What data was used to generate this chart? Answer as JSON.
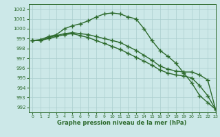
{
  "hours": [
    0,
    1,
    2,
    3,
    4,
    5,
    6,
    7,
    8,
    9,
    10,
    11,
    12,
    13,
    14,
    15,
    16,
    17,
    18,
    19,
    20,
    21,
    22,
    23
  ],
  "line1": [
    998.8,
    998.9,
    999.2,
    999.4,
    1000.0,
    1000.3,
    1000.5,
    1000.8,
    1001.2,
    1001.5,
    1001.6,
    1001.5,
    1001.2,
    1001.0,
    1000.0,
    998.8,
    997.8,
    997.2,
    996.5,
    995.5,
    994.5,
    993.2,
    992.5,
    991.8
  ],
  "line2": [
    998.8,
    998.8,
    999.1,
    999.3,
    999.5,
    999.6,
    999.5,
    999.4,
    999.2,
    999.0,
    998.8,
    998.6,
    998.2,
    997.8,
    997.3,
    996.8,
    996.2,
    995.9,
    995.7,
    995.6,
    995.6,
    995.3,
    994.8,
    991.8
  ],
  "line3": [
    998.8,
    998.8,
    999.0,
    999.2,
    999.4,
    999.5,
    999.3,
    999.1,
    998.8,
    998.5,
    998.2,
    997.9,
    997.5,
    997.1,
    996.7,
    996.3,
    995.8,
    995.5,
    995.3,
    995.2,
    995.0,
    994.2,
    993.2,
    991.8
  ],
  "line_color": "#2d6a2d",
  "bg_color": "#cce8e8",
  "grid_color": "#aacece",
  "xlabel": "Graphe pression niveau de la mer (hPa)",
  "ylim": [
    991.5,
    1002.5
  ],
  "xlim": [
    -0.5,
    23
  ],
  "yticks": [
    992,
    993,
    994,
    995,
    996,
    997,
    998,
    999,
    1000,
    1001,
    1002
  ],
  "xticks": [
    0,
    1,
    2,
    3,
    4,
    5,
    6,
    7,
    8,
    9,
    10,
    11,
    12,
    13,
    14,
    15,
    16,
    17,
    18,
    19,
    20,
    21,
    22,
    23
  ],
  "marker": "+",
  "markersize": 4,
  "linewidth": 1.0
}
